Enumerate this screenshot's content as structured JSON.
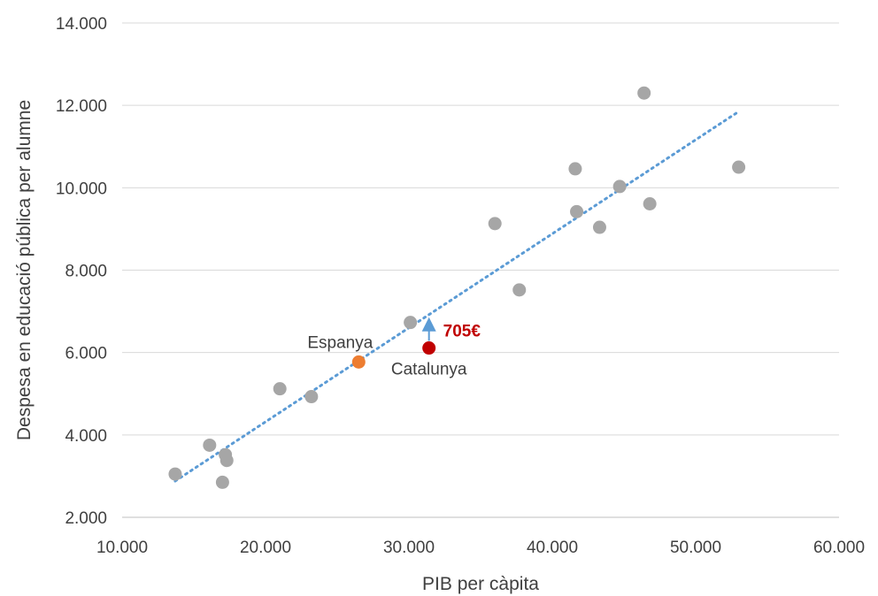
{
  "chart_data": {
    "type": "scatter",
    "title": "",
    "xlabel": "PIB per càpita",
    "ylabel": "Despesa en educació pública per alumne",
    "xlim": [
      10000,
      60000
    ],
    "ylim": [
      2000,
      14000
    ],
    "x_ticks": [
      10000,
      20000,
      30000,
      40000,
      50000,
      60000
    ],
    "x_tick_labels": [
      "10.000",
      "20.000",
      "30.000",
      "40.000",
      "50.000",
      "60.000"
    ],
    "y_ticks": [
      2000,
      4000,
      6000,
      8000,
      10000,
      12000,
      14000
    ],
    "y_tick_labels": [
      "2.000",
      "4.000",
      "6.000",
      "8.000",
      "10.000",
      "12.000",
      "14.000"
    ],
    "grid": "horizontal",
    "series": [
      {
        "color": "#a6a6a6",
        "points": [
          [
            13700,
            3050
          ],
          [
            16100,
            3750
          ],
          [
            17000,
            2850
          ],
          [
            17200,
            3520
          ],
          [
            17300,
            3380
          ],
          [
            21000,
            5120
          ],
          [
            23200,
            4930
          ],
          [
            30100,
            6730
          ],
          [
            36000,
            9130
          ],
          [
            37700,
            7520
          ],
          [
            41600,
            10460
          ],
          [
            41700,
            9420
          ],
          [
            43300,
            9040
          ],
          [
            44700,
            10030
          ],
          [
            46400,
            12300
          ],
          [
            46800,
            9610
          ],
          [
            53000,
            10500
          ]
        ]
      },
      {
        "color": "#ed7d31",
        "points": [
          [
            26500,
            5770
          ]
        ]
      },
      {
        "color": "#c00000",
        "points": [
          [
            31400,
            6110
          ]
        ]
      }
    ],
    "trendline": {
      "color": "#5b9bd5",
      "style": "dotted",
      "from": [
        13700,
        2880
      ],
      "to": [
        53000,
        11850
      ]
    },
    "arrow": {
      "color": "#5b9bd5",
      "from": [
        31400,
        6110
      ],
      "to": [
        31400,
        6815
      ]
    },
    "annotations": [
      {
        "text": "Espanya",
        "x": 26500,
        "y": 5770,
        "anchor": "above-left",
        "style": "label"
      },
      {
        "text": "Catalunya",
        "x": 31400,
        "y": 6110,
        "anchor": "below",
        "style": "label"
      },
      {
        "text": "705€",
        "x": 31400,
        "y": 6110,
        "anchor": "right",
        "style": "diff"
      }
    ]
  }
}
